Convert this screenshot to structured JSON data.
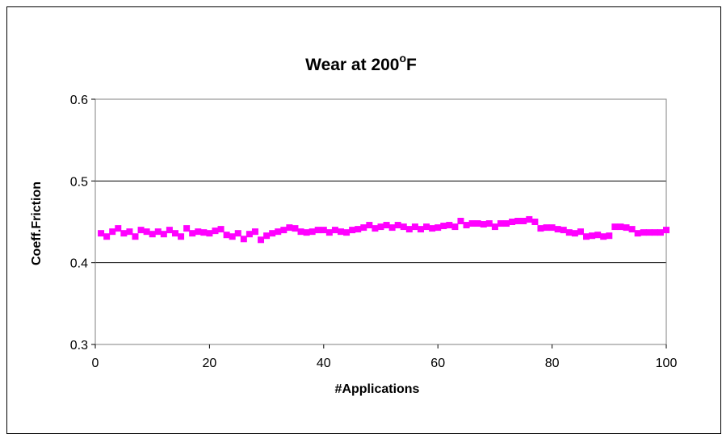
{
  "chart_data": {
    "type": "scatter",
    "title": "Wear at 200",
    "title_superscript": "o",
    "title_suffix": "F",
    "xlabel": "#Applications",
    "ylabel": "Coeff.Friction",
    "xlim": [
      0,
      100
    ],
    "ylim": [
      0.3,
      0.6
    ],
    "x_ticks": [
      "0",
      "20",
      "40",
      "60",
      "80",
      "100"
    ],
    "y_ticks": [
      "0.3",
      "0.4",
      "0.5",
      "0.6"
    ],
    "grid": "horizontal",
    "legend": "none",
    "marker_color": "#ff00ff",
    "marker": "square",
    "series": [
      {
        "x": [
          1,
          2,
          3,
          4,
          5,
          6,
          7,
          8,
          9,
          10,
          11,
          12,
          13,
          14,
          15,
          16,
          17,
          18,
          19,
          20,
          21,
          22,
          23,
          24,
          25,
          26,
          27,
          28,
          29,
          30,
          31,
          32,
          33,
          34,
          35,
          36,
          37,
          38,
          39,
          40,
          41,
          42,
          43,
          44,
          45,
          46,
          47,
          48,
          49,
          50,
          51,
          52,
          53,
          54,
          55,
          56,
          57,
          58,
          59,
          60,
          61,
          62,
          63,
          64,
          65,
          66,
          67,
          68,
          69,
          70,
          71,
          72,
          73,
          74,
          75,
          76,
          77,
          78,
          79,
          80,
          81,
          82,
          83,
          84,
          85,
          86,
          87,
          88,
          89,
          90,
          91,
          92,
          93,
          94,
          95,
          96,
          97,
          98,
          99,
          100
        ],
        "values": [
          0.436,
          0.432,
          0.438,
          0.442,
          0.436,
          0.438,
          0.432,
          0.44,
          0.438,
          0.435,
          0.438,
          0.435,
          0.44,
          0.436,
          0.432,
          0.442,
          0.436,
          0.438,
          0.437,
          0.436,
          0.439,
          0.441,
          0.434,
          0.432,
          0.436,
          0.429,
          0.435,
          0.438,
          0.428,
          0.433,
          0.436,
          0.438,
          0.44,
          0.443,
          0.442,
          0.438,
          0.437,
          0.438,
          0.44,
          0.44,
          0.437,
          0.44,
          0.438,
          0.437,
          0.44,
          0.441,
          0.443,
          0.446,
          0.442,
          0.444,
          0.446,
          0.443,
          0.446,
          0.444,
          0.441,
          0.444,
          0.441,
          0.444,
          0.442,
          0.443,
          0.445,
          0.446,
          0.444,
          0.451,
          0.446,
          0.448,
          0.448,
          0.447,
          0.448,
          0.444,
          0.448,
          0.448,
          0.45,
          0.451,
          0.451,
          0.453,
          0.45,
          0.442,
          0.443,
          0.443,
          0.441,
          0.44,
          0.437,
          0.436,
          0.438,
          0.432,
          0.433,
          0.434,
          0.432,
          0.433,
          0.444,
          0.444,
          0.443,
          0.441,
          0.436,
          0.437,
          0.437,
          0.437,
          0.437,
          0.44
        ]
      }
    ]
  }
}
